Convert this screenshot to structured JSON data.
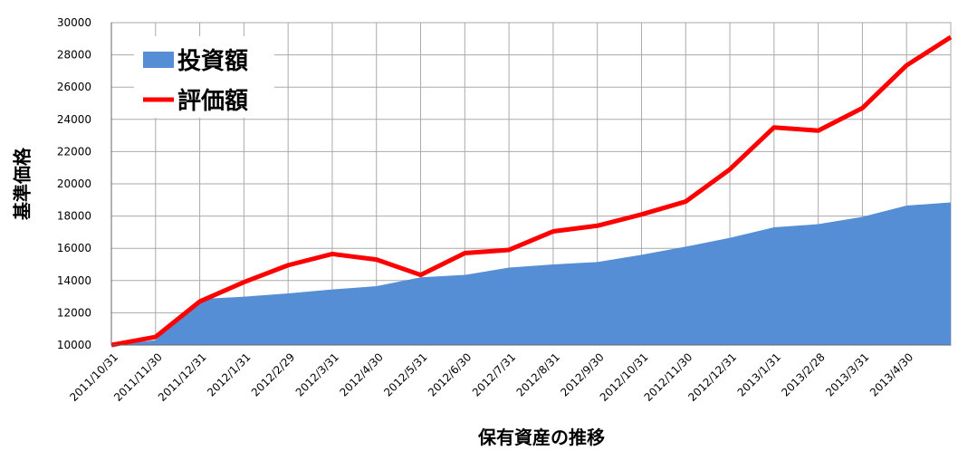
{
  "chart_data": {
    "type": "area_line",
    "x_label": "保有資産の推移",
    "y_label": "基準価格",
    "categories": [
      "2011/10/31",
      "2011/11/30",
      "2011/12/31",
      "2012/1/31",
      "2012/2/29",
      "2012/3/31",
      "2012/4/30",
      "2012/5/31",
      "2012/6/30",
      "2012/7/31",
      "2012/8/31",
      "2012/9/30",
      "2012/10/31",
      "2012/11/30",
      "2012/12/31",
      "2013/1/31",
      "2013/2/28",
      "2013/3/31",
      "2013/4/30",
      null
    ],
    "series": [
      {
        "name": "投資額",
        "color": "#558ed5",
        "kind": "area",
        "values": [
          10000,
          10300,
          12850,
          13000,
          13200,
          13450,
          13650,
          14200,
          14350,
          14800,
          15000,
          15150,
          15600,
          16100,
          16650,
          17300,
          17500,
          17950,
          18650,
          18850
        ]
      },
      {
        "name": "評価額",
        "color": "#ff0000",
        "kind": "line",
        "values": [
          10000,
          10500,
          12700,
          13900,
          14950,
          15650,
          15300,
          14350,
          15700,
          15900,
          17050,
          17400,
          18100,
          18900,
          20900,
          23500,
          23300,
          24700,
          27350,
          29100
        ]
      }
    ],
    "ylim": [
      10000,
      30000
    ],
    "yticks": [
      10000,
      12000,
      14000,
      16000,
      18000,
      20000,
      22000,
      24000,
      26000,
      28000,
      30000
    ],
    "grid": true,
    "legend": "top-left"
  }
}
